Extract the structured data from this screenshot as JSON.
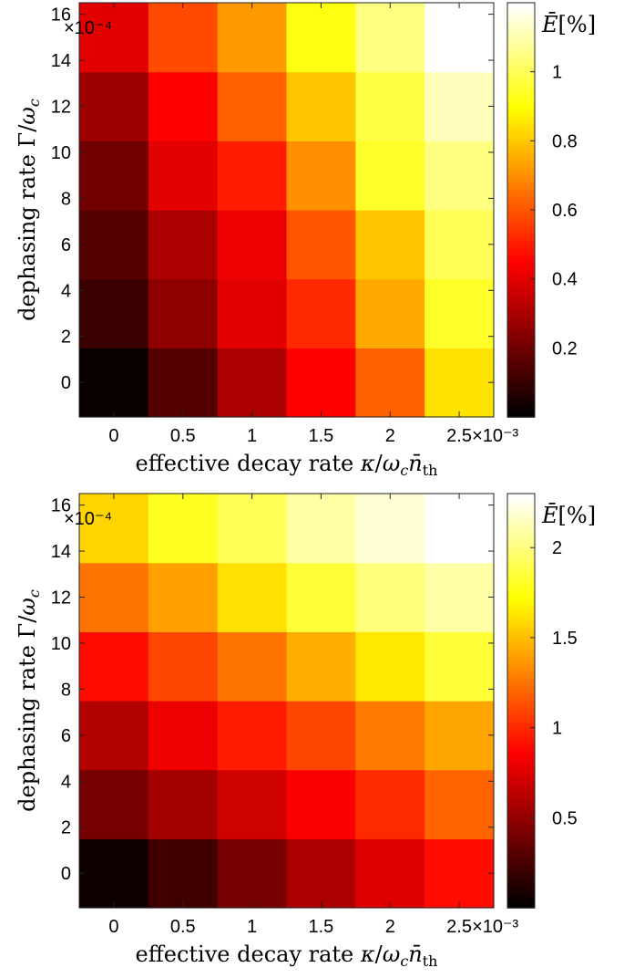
{
  "chart_data": [
    {
      "type": "heatmap",
      "xlabel": "effective decay rate κ/ω_c n̄_th",
      "ylabel": "dephasing rate Γ/ω_c",
      "x_multiplier": "×10⁻³",
      "y_multiplier": "×10⁻⁴",
      "x_ticks": [
        "0",
        "0.5",
        "1",
        "1.5",
        "2",
        "2.5"
      ],
      "y_ticks": [
        "0",
        "2",
        "4",
        "6",
        "8",
        "10",
        "12",
        "14",
        "16"
      ],
      "x": [
        0,
        0.5,
        1,
        1.5,
        2,
        2.5
      ],
      "y": [
        0,
        3,
        6,
        9,
        12,
        15
      ],
      "xlim": [
        -0.25,
        2.75
      ],
      "ylim": [
        -1.5,
        16.5
      ],
      "colormap": "hot",
      "clim": [
        0,
        1.2
      ],
      "colorbar_label": "Ē[%]",
      "colorbar_ticks": [
        "0.2",
        "0.4",
        "0.6",
        "0.8",
        "1"
      ],
      "colorbar_tick_values": [
        0.2,
        0.4,
        0.6,
        0.8,
        1.0
      ],
      "values": [
        [
          0.02,
          0.15,
          0.3,
          0.45,
          0.62,
          0.85
        ],
        [
          0.1,
          0.25,
          0.4,
          0.52,
          0.75,
          0.95
        ],
        [
          0.15,
          0.3,
          0.42,
          0.6,
          0.8,
          1.0
        ],
        [
          0.2,
          0.4,
          0.5,
          0.7,
          0.95,
          1.05
        ],
        [
          0.28,
          0.45,
          0.62,
          0.8,
          0.98,
          1.12
        ],
        [
          0.4,
          0.58,
          0.72,
          0.92,
          1.05,
          1.2
        ]
      ]
    },
    {
      "type": "heatmap",
      "xlabel": "effective decay rate κ/ω_c n̄_th",
      "ylabel": "dephasing rate Γ/ω_c",
      "x_multiplier": "×10⁻³",
      "y_multiplier": "×10⁻⁴",
      "x_ticks": [
        "0",
        "0.5",
        "1",
        "1.5",
        "2",
        "2.5"
      ],
      "y_ticks": [
        "0",
        "2",
        "4",
        "6",
        "8",
        "10",
        "12",
        "14",
        "16"
      ],
      "x": [
        0,
        0.5,
        1,
        1.5,
        2,
        2.5
      ],
      "y": [
        0,
        3,
        6,
        9,
        12,
        15
      ],
      "xlim": [
        -0.25,
        2.75
      ],
      "ylim": [
        -1.5,
        16.5
      ],
      "colormap": "hot",
      "clim": [
        0,
        2.3
      ],
      "colorbar_label": "Ē[%]",
      "colorbar_ticks": [
        "0.5",
        "1",
        "1.5",
        "2"
      ],
      "colorbar_tick_values": [
        0.5,
        1.0,
        1.5,
        2.0
      ],
      "values": [
        [
          0.05,
          0.22,
          0.4,
          0.58,
          0.75,
          0.9
        ],
        [
          0.4,
          0.55,
          0.7,
          0.85,
          1.0,
          1.2
        ],
        [
          0.6,
          0.8,
          0.95,
          1.1,
          1.28,
          1.42
        ],
        [
          0.9,
          1.1,
          1.25,
          1.45,
          1.65,
          1.85
        ],
        [
          1.25,
          1.4,
          1.62,
          1.85,
          2.0,
          2.1
        ],
        [
          1.58,
          1.8,
          1.92,
          2.1,
          2.2,
          2.3
        ]
      ]
    }
  ]
}
